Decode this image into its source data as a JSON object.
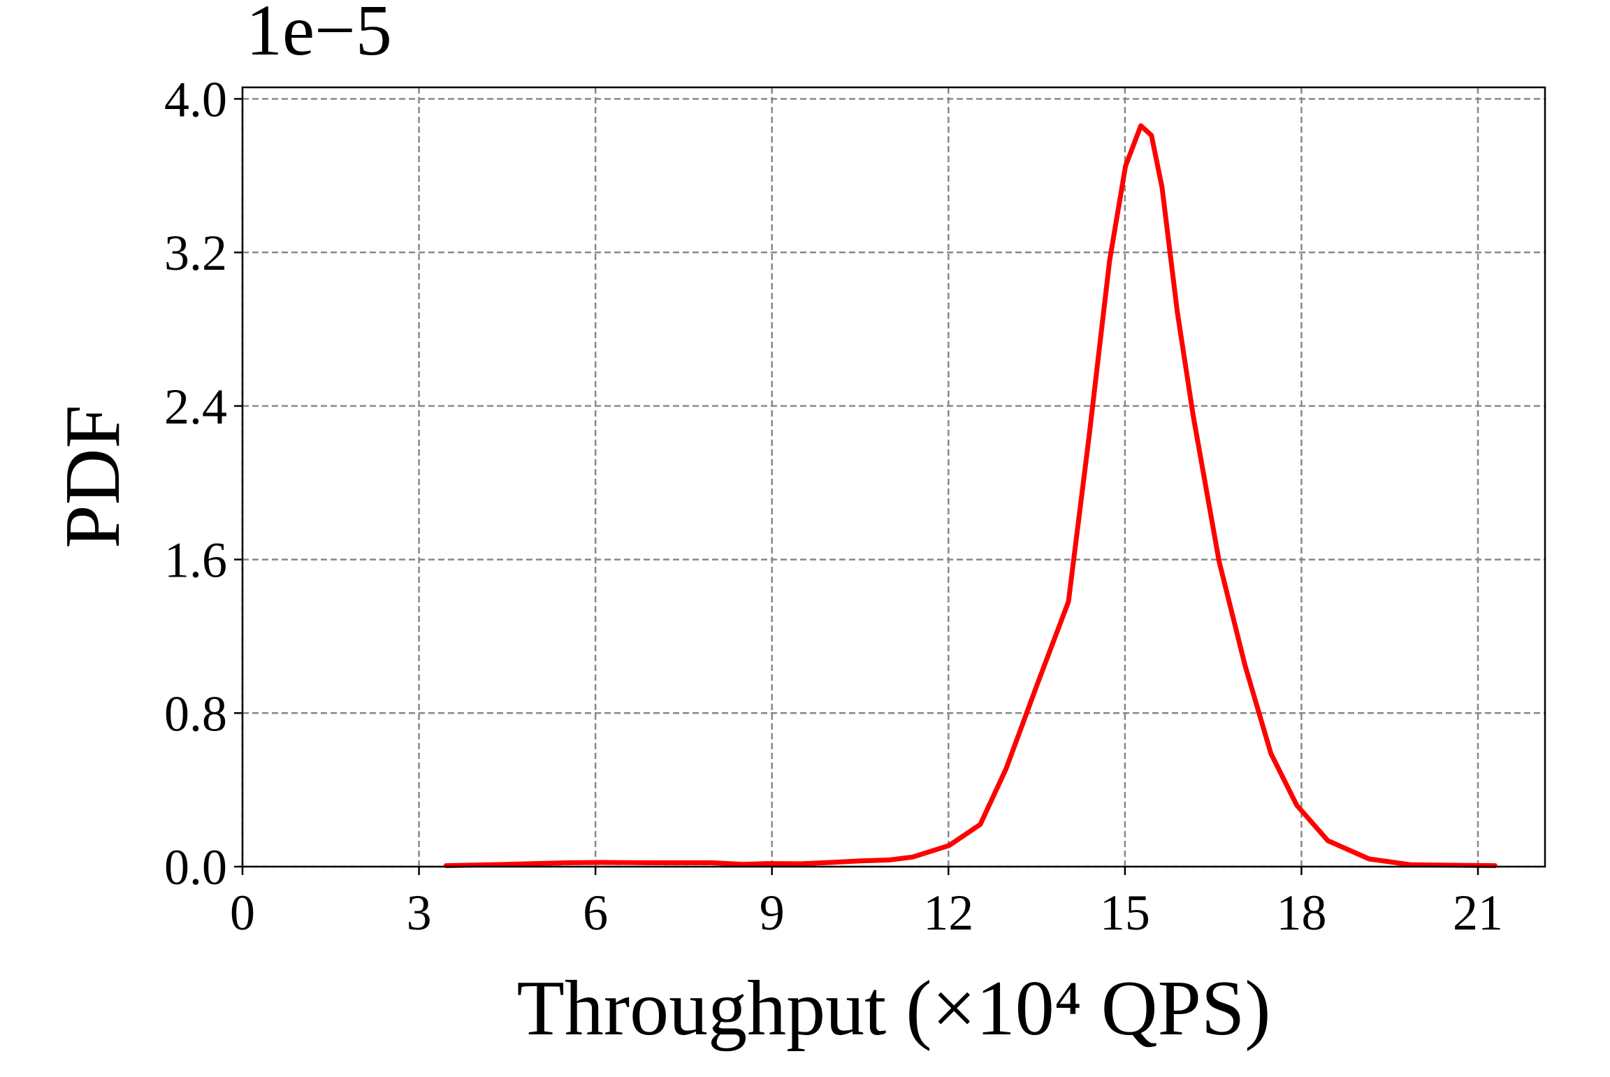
{
  "chart_data": {
    "type": "line",
    "x_label": "Throughput (×10⁴ QPS)",
    "y_label": "PDF",
    "y_offset_label": "1e−5",
    "xlim": [
      0,
      22.14
    ],
    "ylim": [
      0,
      4.06
    ],
    "xticks": [
      0,
      3,
      6,
      9,
      12,
      15,
      18,
      21
    ],
    "yticks": [
      {
        "value": 0,
        "label": "0.0"
      },
      0.8,
      1.6,
      2.4,
      3.2,
      {
        "value": 4,
        "label": "4.0"
      }
    ],
    "grid": true,
    "series": [
      {
        "color": "#ff0000",
        "x": [
          3.46,
          4.5,
          5.5,
          6.1,
          7.0,
          8.0,
          8.5,
          8.92,
          9.5,
          10.0,
          10.51,
          11.0,
          11.39,
          12.01,
          12.54,
          12.98,
          13.51,
          14.04,
          14.39,
          14.74,
          15.01,
          15.27,
          15.45,
          15.63,
          15.89,
          16.16,
          16.6,
          17.04,
          17.48,
          17.92,
          18.45,
          19.15,
          19.86,
          21.29
        ],
        "values": [
          0.005,
          0.012,
          0.02,
          0.022,
          0.02,
          0.02,
          0.012,
          0.016,
          0.015,
          0.022,
          0.03,
          0.035,
          0.05,
          0.11,
          0.22,
          0.51,
          0.95,
          1.38,
          2.24,
          3.16,
          3.65,
          3.86,
          3.81,
          3.54,
          2.89,
          2.35,
          1.59,
          1.05,
          0.59,
          0.32,
          0.135,
          0.04,
          0.01,
          0.005
        ]
      }
    ]
  }
}
